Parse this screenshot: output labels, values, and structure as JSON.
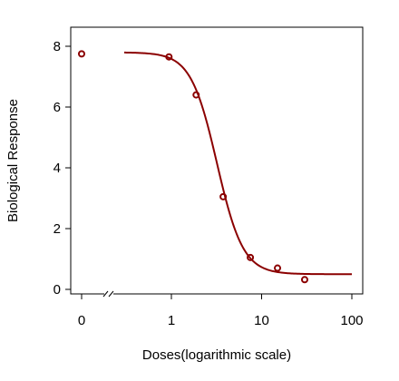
{
  "chart_data": {
    "type": "scatter",
    "title": "",
    "xlabel": "Doses(logarithmic scale)",
    "ylabel": "Biological Response",
    "x_scale": "log",
    "x_axis_break": true,
    "xlim": [
      0.2,
      100
    ],
    "ylim": [
      0,
      8.6
    ],
    "x_ticks": [
      {
        "value": 0,
        "label": "0"
      },
      {
        "value": 1,
        "label": "1"
      },
      {
        "value": 10,
        "label": "10"
      },
      {
        "value": 100,
        "label": "100"
      }
    ],
    "y_ticks": [
      {
        "value": 0,
        "label": "0"
      },
      {
        "value": 2,
        "label": "2"
      },
      {
        "value": 4,
        "label": "4"
      },
      {
        "value": 6,
        "label": "6"
      },
      {
        "value": 8,
        "label": "8"
      }
    ],
    "series": [
      {
        "kind": "points",
        "color": "#8b0000",
        "points": [
          {
            "x": 0,
            "y": 7.75
          },
          {
            "x": 0.94,
            "y": 7.65
          },
          {
            "x": 1.88,
            "y": 6.4
          },
          {
            "x": 3.75,
            "y": 3.05
          },
          {
            "x": 7.5,
            "y": 1.05
          },
          {
            "x": 15,
            "y": 0.7
          },
          {
            "x": 30,
            "y": 0.32
          }
        ]
      },
      {
        "kind": "fitted-curve",
        "color": "#8b0000",
        "model": {
          "top": 7.8,
          "bottom": 0.5,
          "ec50": 3.2,
          "hill": 3.0
        },
        "x_range": [
          0.3,
          100
        ]
      }
    ],
    "grid": false,
    "legend": "none"
  }
}
